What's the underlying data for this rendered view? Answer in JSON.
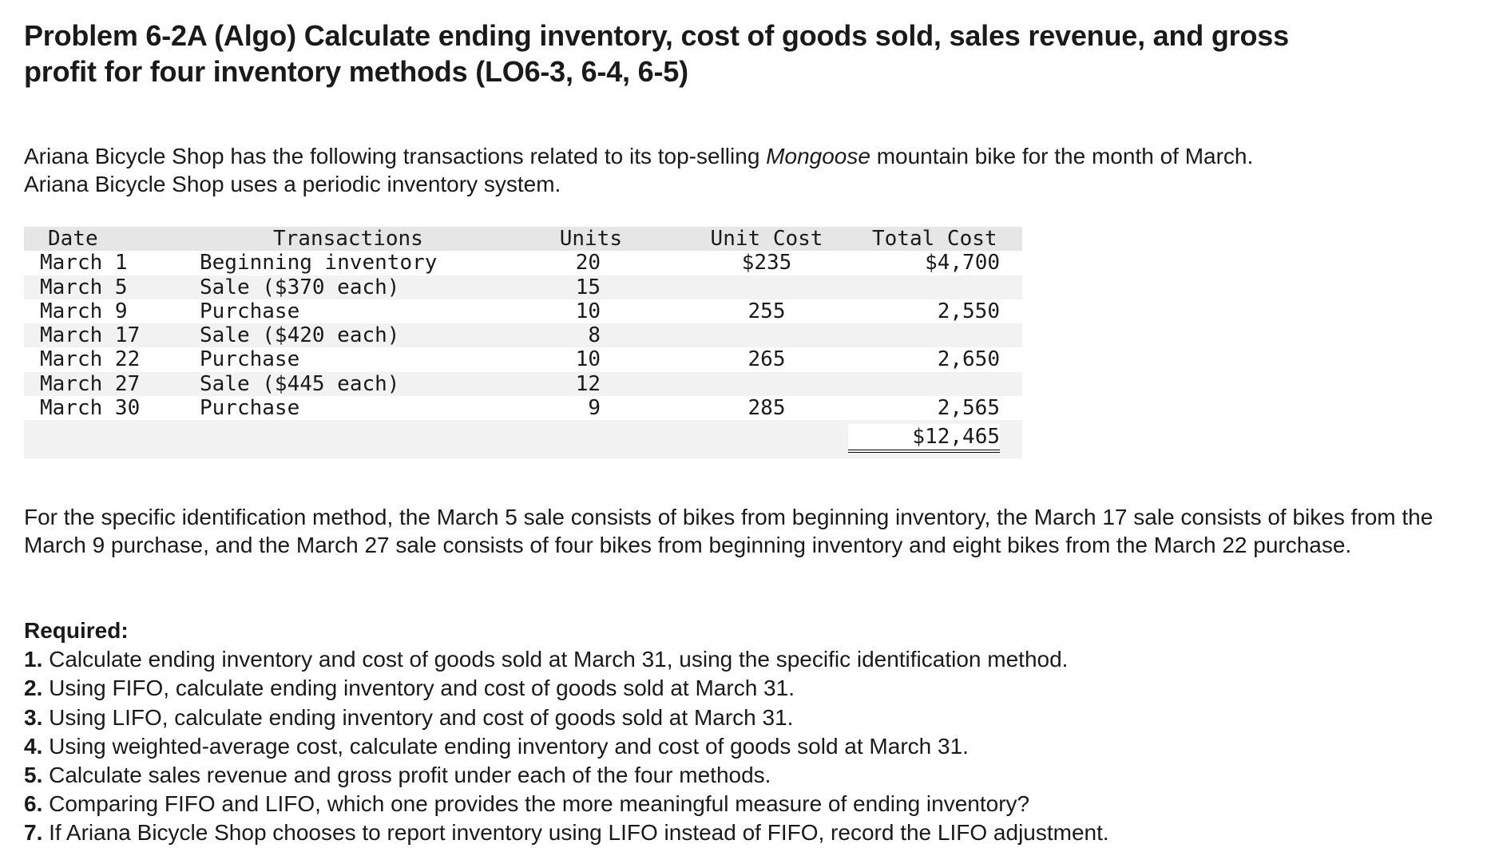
{
  "problem": {
    "title_line1": "Problem 6-2A (Algo) Calculate ending inventory, cost of goods sold, sales revenue, and gross",
    "title_line2": "profit for four inventory methods (LO6-3, 6-4, 6-5)"
  },
  "intro": {
    "before_italic": "Ariana Bicycle Shop has the following transactions related to its top-selling ",
    "italic": "Mongoose",
    "after_italic": " mountain bike for the month of March.",
    "line2": "Ariana Bicycle Shop uses a periodic inventory system."
  },
  "table": {
    "headers": {
      "date": "Date",
      "transactions": "Transactions",
      "units": "Units",
      "unit_cost": "Unit Cost",
      "total_cost": "Total Cost"
    },
    "rows": [
      {
        "date": "March 1",
        "transaction": "Beginning inventory",
        "units": "20",
        "unit_cost": "$235",
        "total_cost": "$4,700"
      },
      {
        "date": "March 5",
        "transaction": "Sale ($370 each)",
        "units": "15",
        "unit_cost": "",
        "total_cost": ""
      },
      {
        "date": "March 9",
        "transaction": "Purchase",
        "units": "10",
        "unit_cost": "255",
        "total_cost": "2,550"
      },
      {
        "date": "March 17",
        "transaction": "Sale ($420 each)",
        "units": "8",
        "unit_cost": "",
        "total_cost": ""
      },
      {
        "date": "March 22",
        "transaction": "Purchase",
        "units": "10",
        "unit_cost": "265",
        "total_cost": "2,650"
      },
      {
        "date": "March 27",
        "transaction": "Sale ($445 each)",
        "units": "12",
        "unit_cost": "",
        "total_cost": ""
      },
      {
        "date": "March 30",
        "transaction": "Purchase",
        "units": "9",
        "unit_cost": "285",
        "total_cost": "2,565"
      }
    ],
    "grand_total": "$12,465"
  },
  "specific_id_note": "For the specific identification method, the March 5 sale consists of bikes from beginning inventory, the March 17 sale consists of bikes from the March 9 purchase, and the March 27 sale consists of four bikes from beginning inventory and eight bikes from the March 22 purchase.",
  "required": {
    "label": "Required:",
    "items": [
      {
        "num": "1.",
        "text": " Calculate ending inventory and cost of goods sold at March 31, using the specific identification method."
      },
      {
        "num": "2.",
        "text": " Using FIFO, calculate ending inventory and cost of goods sold at March 31."
      },
      {
        "num": "3.",
        "text": " Using LIFO, calculate ending inventory and cost of goods sold at March 31."
      },
      {
        "num": "4.",
        "text": " Using weighted-average cost, calculate ending inventory and cost of goods sold at March 31."
      },
      {
        "num": "5.",
        "text": " Calculate sales revenue and gross profit under each of the four methods."
      },
      {
        "num": "6.",
        "text": " Comparing FIFO and LIFO, which one provides the more meaningful measure of ending inventory?"
      },
      {
        "num": "7.",
        "text": " If Ariana Bicycle Shop chooses to report inventory using LIFO instead of FIFO, record the LIFO adjustment."
      }
    ]
  }
}
